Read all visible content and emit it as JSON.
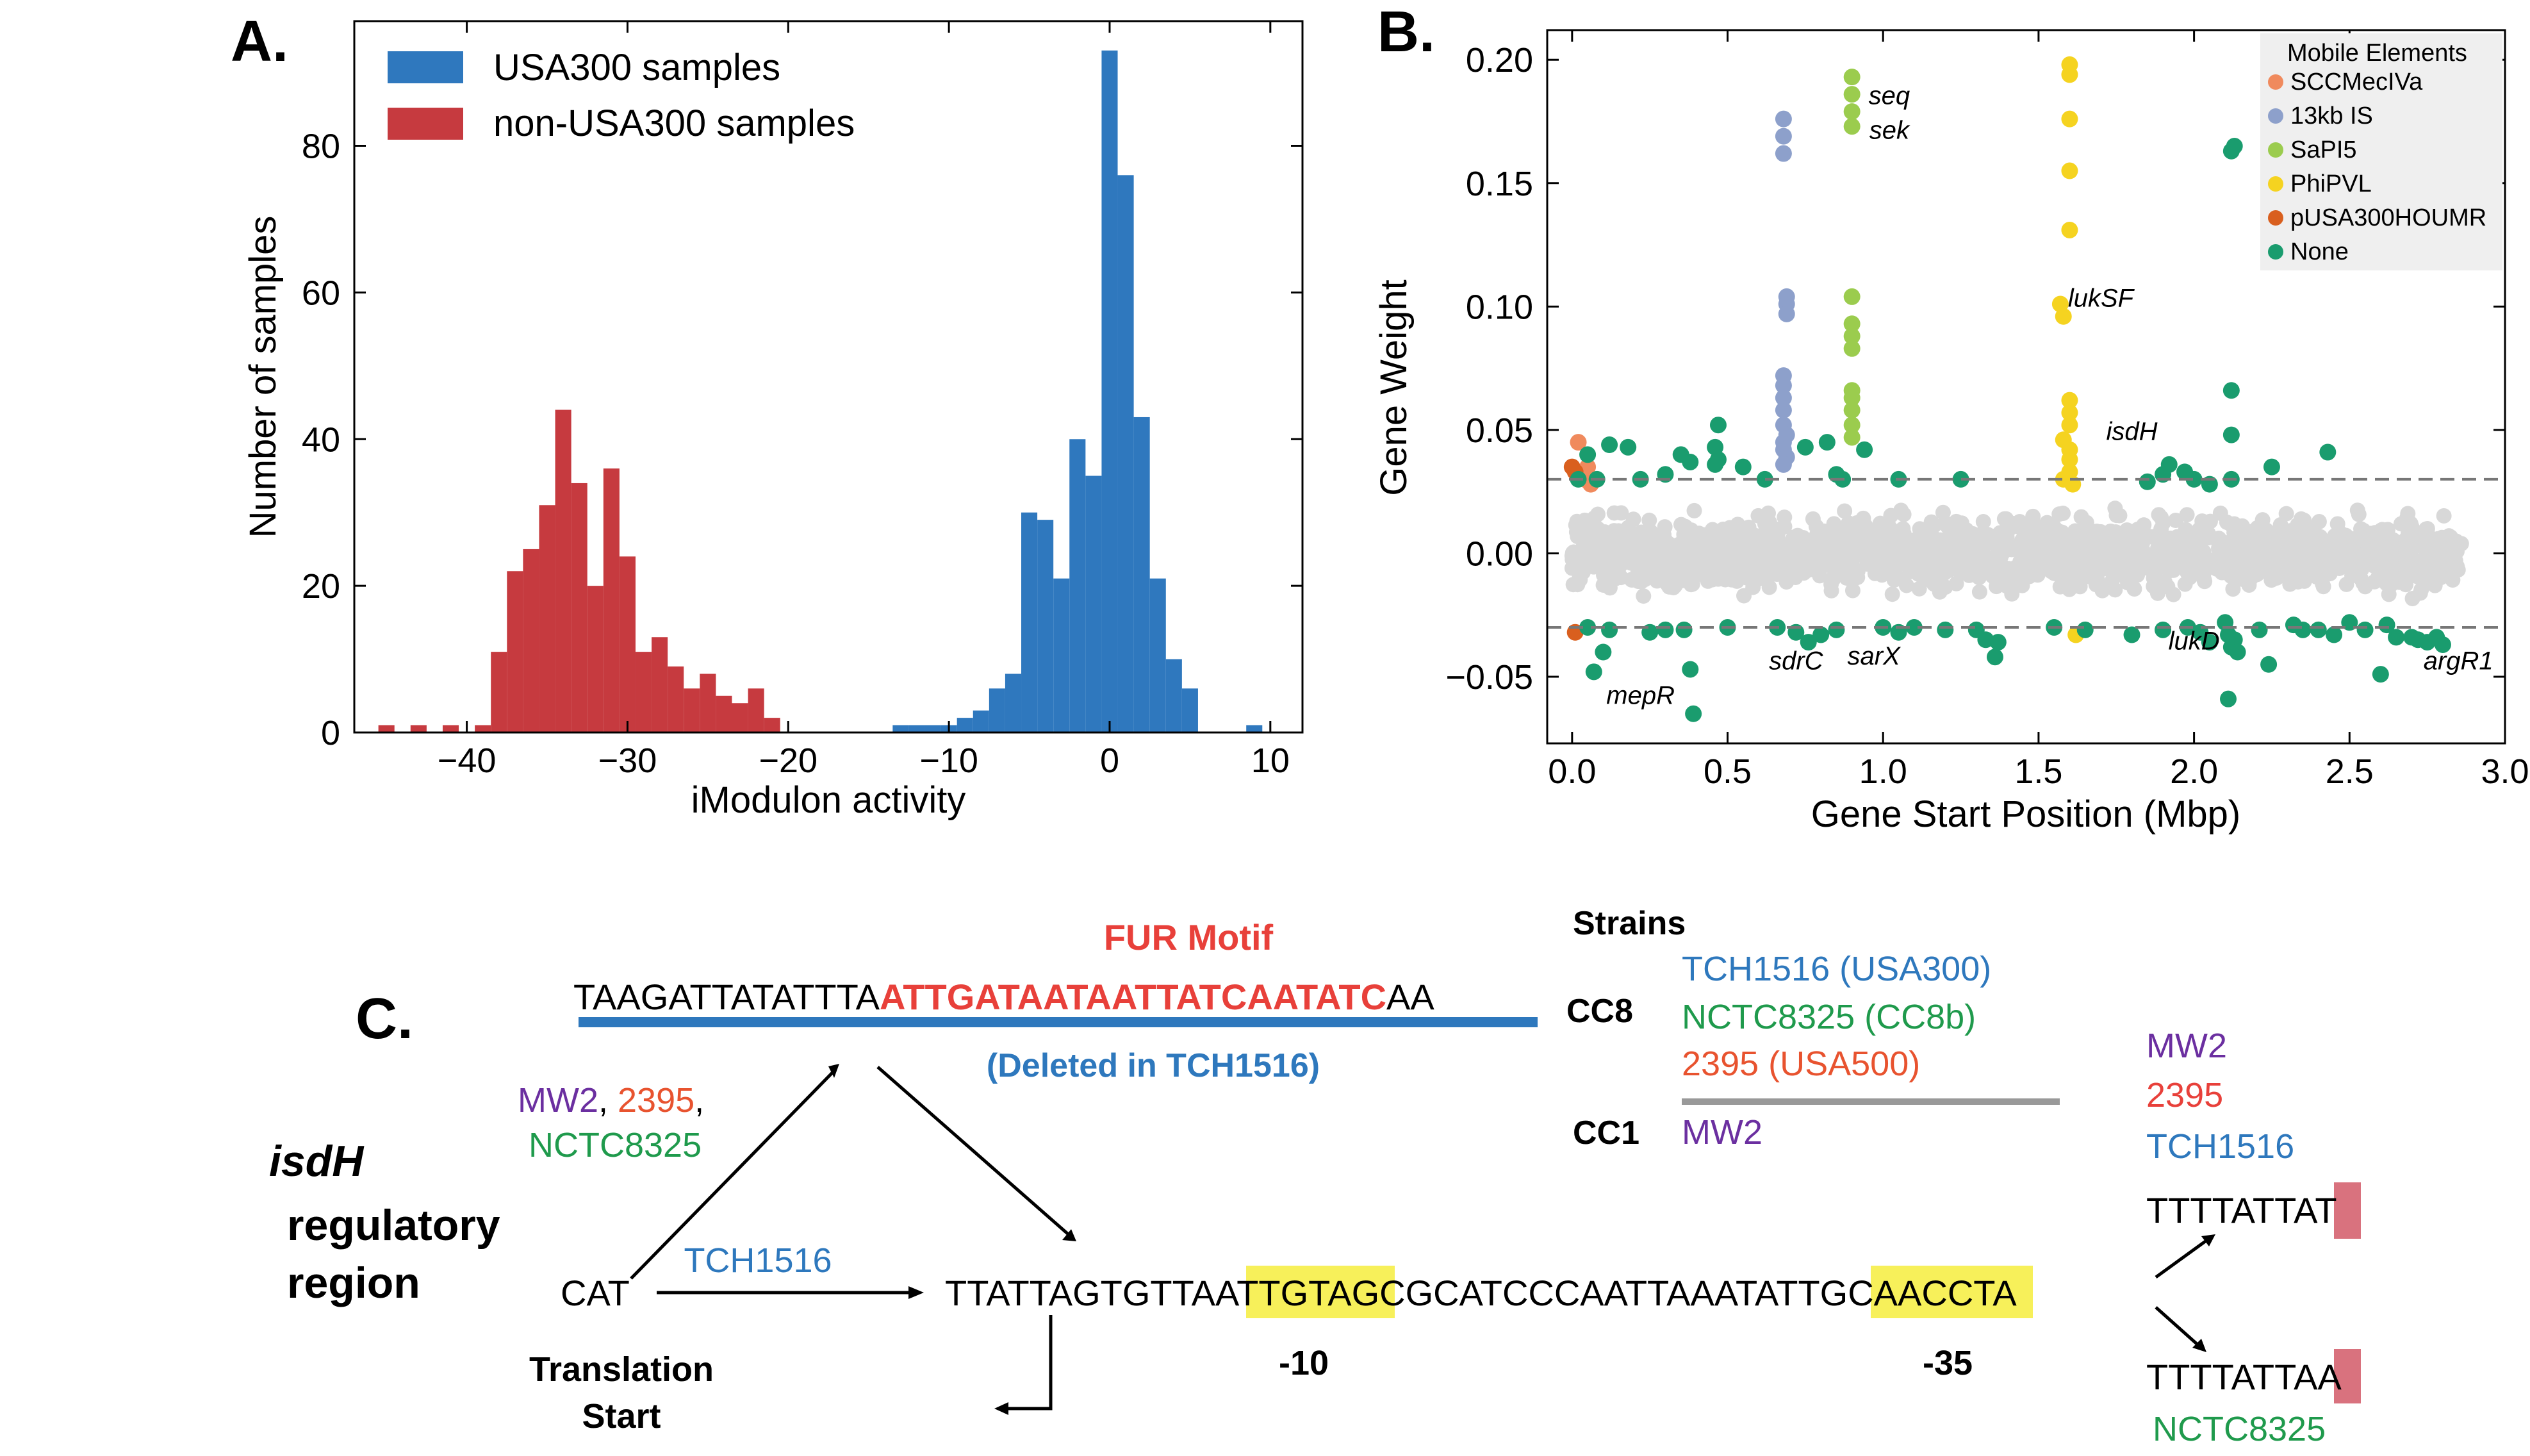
{
  "panels": {
    "a": {
      "letter": "A."
    },
    "b": {
      "letter": "B."
    },
    "c": {
      "letter": "C."
    }
  },
  "chart_data": [
    {
      "type": "bar",
      "panel": "A",
      "xlabel": "iModulon activity",
      "ylabel": "Number of samples",
      "xlim": [
        -47,
        12
      ],
      "ylim": [
        0,
        97
      ],
      "xticks": [
        -40,
        -30,
        -20,
        -10,
        0,
        10
      ],
      "yticks": [
        0,
        20,
        40,
        60,
        80
      ],
      "bin_width": 1,
      "legend_position": "top-left",
      "series": [
        {
          "name": "USA300 samples",
          "color": "#2f78be",
          "bins": [
            [
              -13,
              1
            ],
            [
              -12,
              1
            ],
            [
              -11,
              1
            ],
            [
              -10,
              1
            ],
            [
              -9,
              2
            ],
            [
              -8,
              3
            ],
            [
              -7,
              6
            ],
            [
              -6,
              8
            ],
            [
              -5,
              30
            ],
            [
              -4,
              29
            ],
            [
              -3,
              21
            ],
            [
              -2,
              40
            ],
            [
              -1,
              35
            ],
            [
              0,
              93
            ],
            [
              1,
              76
            ],
            [
              2,
              43
            ],
            [
              3,
              21
            ],
            [
              4,
              10
            ],
            [
              5,
              6
            ],
            [
              9,
              1
            ]
          ]
        },
        {
          "name": "non-USA300 samples",
          "color": "#c63a3f",
          "bins": [
            [
              -45,
              1
            ],
            [
              -43,
              1
            ],
            [
              -41,
              1
            ],
            [
              -39,
              1
            ],
            [
              -38,
              11
            ],
            [
              -37,
              22
            ],
            [
              -36,
              25
            ],
            [
              -35,
              31
            ],
            [
              -34,
              44
            ],
            [
              -33,
              34
            ],
            [
              -32,
              20
            ],
            [
              -31,
              36
            ],
            [
              -30,
              24
            ],
            [
              -29,
              11
            ],
            [
              -28,
              13
            ],
            [
              -27,
              9
            ],
            [
              -26,
              6
            ],
            [
              -25,
              8
            ],
            [
              -24,
              5
            ],
            [
              -23,
              4
            ],
            [
              -22,
              6
            ],
            [
              -21,
              2
            ]
          ]
        }
      ]
    },
    {
      "type": "scatter",
      "panel": "B",
      "xlabel": "Gene Start Position (Mbp)",
      "ylabel": "Gene Weight",
      "xlim": [
        -0.08,
        3.0
      ],
      "ylim": [
        -0.077,
        0.212
      ],
      "xticks": [
        0.0,
        0.5,
        1.0,
        1.5,
        2.0,
        2.5,
        3.0
      ],
      "yticks": [
        -0.05,
        0.0,
        0.05,
        0.1,
        0.15,
        0.2
      ],
      "thresholds": [
        0.03,
        -0.03
      ],
      "legend_title": "Mobile Elements",
      "legend_position": "top-right",
      "background_color": "#d8d8d8",
      "series": [
        {
          "name": "SCCMecIVa",
          "color": "#f08a5d",
          "points": [
            [
              0.02,
              0.045
            ],
            [
              0.05,
              0.035
            ],
            [
              0.04,
              0.03
            ],
            [
              0.06,
              0.028
            ]
          ]
        },
        {
          "name": "13kb IS",
          "color": "#8da0cb",
          "points": [
            [
              0.68,
              0.176
            ],
            [
              0.68,
              0.169
            ],
            [
              0.68,
              0.162
            ],
            [
              0.69,
              0.104
            ],
            [
              0.69,
              0.101
            ],
            [
              0.69,
              0.097
            ],
            [
              0.68,
              0.072
            ],
            [
              0.68,
              0.068
            ],
            [
              0.68,
              0.063
            ],
            [
              0.68,
              0.058
            ],
            [
              0.68,
              0.052
            ],
            [
              0.69,
              0.048
            ],
            [
              0.68,
              0.045
            ],
            [
              0.68,
              0.042
            ],
            [
              0.69,
              0.039
            ],
            [
              0.68,
              0.036
            ]
          ]
        },
        {
          "name": "SaPI5",
          "color": "#9bcc4e",
          "points": [
            [
              0.9,
              0.193
            ],
            [
              0.9,
              0.186
            ],
            [
              0.9,
              0.179
            ],
            [
              0.9,
              0.173
            ],
            [
              0.9,
              0.104
            ],
            [
              0.9,
              0.093
            ],
            [
              0.9,
              0.088
            ],
            [
              0.9,
              0.083
            ],
            [
              0.9,
              0.066
            ],
            [
              0.9,
              0.063
            ],
            [
              0.9,
              0.058
            ],
            [
              0.9,
              0.052
            ],
            [
              0.9,
              0.047
            ]
          ]
        },
        {
          "name": "PhiPVL",
          "color": "#f5d320",
          "points": [
            [
              1.6,
              0.198
            ],
            [
              1.6,
              0.194
            ],
            [
              1.6,
              0.176
            ],
            [
              1.6,
              0.155
            ],
            [
              1.6,
              0.131
            ],
            [
              1.57,
              0.101
            ],
            [
              1.58,
              0.096
            ],
            [
              1.6,
              0.062
            ],
            [
              1.6,
              0.057
            ],
            [
              1.6,
              0.052
            ],
            [
              1.58,
              0.046
            ],
            [
              1.6,
              0.042
            ],
            [
              1.6,
              0.038
            ],
            [
              1.6,
              0.033
            ],
            [
              1.58,
              0.03
            ],
            [
              1.61,
              0.028
            ],
            [
              1.62,
              -0.033
            ]
          ]
        },
        {
          "name": "pUSA300HOUMR",
          "color": "#d95f1e",
          "points": [
            [
              0.0,
              0.035
            ],
            [
              0.01,
              0.033
            ],
            [
              0.01,
              -0.032
            ]
          ]
        },
        {
          "name": "None",
          "color": "#1a9c6e",
          "points": [
            [
              0.02,
              0.03
            ],
            [
              0.05,
              0.04
            ],
            [
              0.08,
              0.03
            ],
            [
              0.12,
              0.044
            ],
            [
              0.18,
              0.043
            ],
            [
              0.22,
              0.03
            ],
            [
              0.3,
              0.032
            ],
            [
              0.35,
              0.04
            ],
            [
              0.38,
              0.037
            ],
            [
              0.46,
              0.036
            ],
            [
              0.46,
              0.043
            ],
            [
              0.47,
              0.052
            ],
            [
              0.47,
              0.038
            ],
            [
              0.55,
              0.035
            ],
            [
              0.62,
              0.03
            ],
            [
              0.75,
              0.043
            ],
            [
              0.82,
              0.045
            ],
            [
              0.85,
              0.032
            ],
            [
              0.87,
              0.03
            ],
            [
              0.94,
              0.042
            ],
            [
              1.05,
              0.03
            ],
            [
              1.25,
              0.03
            ],
            [
              1.85,
              0.029
            ],
            [
              1.9,
              0.032
            ],
            [
              1.92,
              0.036
            ],
            [
              1.97,
              0.033
            ],
            [
              2.0,
              0.03
            ],
            [
              2.05,
              0.028
            ],
            [
              2.12,
              0.066
            ],
            [
              2.12,
              0.048
            ],
            [
              2.12,
              0.03
            ],
            [
              2.12,
              0.163
            ],
            [
              2.13,
              0.165
            ],
            [
              2.25,
              0.035
            ],
            [
              2.43,
              0.041
            ],
            [
              0.07,
              -0.048
            ],
            [
              0.1,
              -0.04
            ],
            [
              0.05,
              -0.03
            ],
            [
              0.12,
              -0.031
            ],
            [
              0.25,
              -0.032
            ],
            [
              0.3,
              -0.031
            ],
            [
              0.36,
              -0.031
            ],
            [
              0.38,
              -0.047
            ],
            [
              0.39,
              -0.065
            ],
            [
              0.5,
              -0.03
            ],
            [
              0.66,
              -0.03
            ],
            [
              0.72,
              -0.032
            ],
            [
              0.76,
              -0.036
            ],
            [
              0.8,
              -0.033
            ],
            [
              0.85,
              -0.031
            ],
            [
              1.0,
              -0.03
            ],
            [
              1.05,
              -0.032
            ],
            [
              1.1,
              -0.03
            ],
            [
              1.2,
              -0.031
            ],
            [
              1.3,
              -0.031
            ],
            [
              1.33,
              -0.035
            ],
            [
              1.36,
              -0.042
            ],
            [
              1.37,
              -0.036
            ],
            [
              1.55,
              -0.03
            ],
            [
              1.65,
              -0.031
            ],
            [
              1.8,
              -0.033
            ],
            [
              1.9,
              -0.031
            ],
            [
              1.98,
              -0.03
            ],
            [
              2.02,
              -0.032
            ],
            [
              2.05,
              -0.036
            ],
            [
              2.1,
              -0.028
            ],
            [
              2.11,
              -0.033
            ],
            [
              2.12,
              -0.038
            ],
            [
              2.13,
              -0.035
            ],
            [
              2.14,
              -0.04
            ],
            [
              2.11,
              -0.059
            ],
            [
              2.21,
              -0.031
            ],
            [
              2.24,
              -0.045
            ],
            [
              2.32,
              -0.029
            ],
            [
              2.35,
              -0.031
            ],
            [
              2.4,
              -0.031
            ],
            [
              2.45,
              -0.033
            ],
            [
              2.5,
              -0.028
            ],
            [
              2.55,
              -0.031
            ],
            [
              2.6,
              -0.049
            ],
            [
              2.62,
              -0.029
            ],
            [
              2.65,
              -0.034
            ],
            [
              2.7,
              -0.034
            ],
            [
              2.75,
              -0.036
            ],
            [
              2.78,
              -0.034
            ],
            [
              2.8,
              -0.037
            ],
            [
              2.72,
              -0.035
            ]
          ]
        }
      ],
      "annotations": [
        {
          "text": "seq",
          "x": 1.02,
          "y": 0.182
        },
        {
          "text": "sek",
          "x": 1.02,
          "y": 0.168
        },
        {
          "text": "lukSF",
          "x": 1.7,
          "y": 0.1
        },
        {
          "text": "isdH",
          "x": 1.8,
          "y": 0.046
        },
        {
          "text": "mepR",
          "x": 0.22,
          "y": -0.061
        },
        {
          "text": "sdrC",
          "x": 0.72,
          "y": -0.047
        },
        {
          "text": "sarX",
          "x": 0.97,
          "y": -0.045
        },
        {
          "text": "lukD",
          "x": 2.0,
          "y": -0.039
        },
        {
          "text": "argR1",
          "x": 2.85,
          "y": -0.047
        }
      ]
    }
  ],
  "diagram_c": {
    "fur_title": "FUR Motif",
    "fur_seq_pre": "TAAGATTATATTTA",
    "fur_seq_red": "ATTGATAATAATTATCAATATC",
    "fur_seq_post": "AA",
    "deleted_note": "(Deleted in TCH1516)",
    "strains_title": "Strains",
    "cc8_label": "CC8",
    "cc8_strains": [
      {
        "text": "TCH1516 (USA300)",
        "color": "#2e78bd"
      },
      {
        "text": "NCTC8325 (CC8b)",
        "color": "#1f9a4c"
      },
      {
        "text": "2395 (USA500)",
        "color": "#e8532f"
      }
    ],
    "cc1_label": "CC1",
    "cc1_strain": {
      "text": "MW2",
      "color": "#6b2fa0"
    },
    "left_strains_mw2": "MW2",
    "left_comma1": ", ",
    "left_strains_2395": "2395",
    "left_comma2": ",",
    "left_strains_nctc": "NCTC8325",
    "region_bold1": "isdH",
    "region_bold2": "regulatory",
    "region_bold3": "region",
    "cat": "CAT",
    "tch_arrow_label": "TCH1516",
    "main_seq_1": "TTATTAGTGTTA",
    "main_seq_box1": "ATTGTA",
    "main_seq_2": "GCGCATCCCAATTAAATA",
    "main_seq_box2": "TTGCAA",
    "main_seq_3": "CCTA",
    "minus10": "-10",
    "minus35": "-35",
    "translation_1": "Translation",
    "translation_2": "Start",
    "right_mw2": "MW2",
    "right_2395": "2395",
    "right_tch": "TCH1516",
    "variant_t_prefix": "TTTTATTA",
    "variant_t_base": "T",
    "variant_a_prefix": "TTTTATTA",
    "variant_a_base": "A",
    "right_nctc": "NCTC8325",
    "colors": {
      "red": "#e8403a",
      "blue": "#2e78bd",
      "green": "#1f9a4c",
      "purple": "#6b2fa0",
      "orange": "#e8532f",
      "highlight": "#f7f05a",
      "pink": "#d9727e"
    }
  }
}
